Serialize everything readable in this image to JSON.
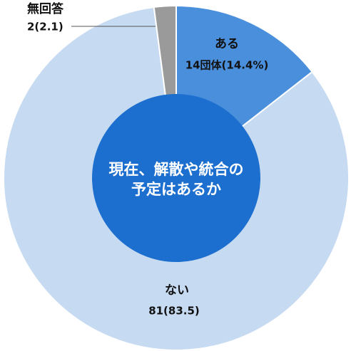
{
  "chart_data": {
    "type": "donut",
    "title": "現在、解散や統合の予定はあるか",
    "title_lines": [
      "現在、解散や統合の",
      "予定はあるか"
    ],
    "categories": [
      "ある",
      "ない",
      "無回答"
    ],
    "values": [
      14,
      81,
      2
    ],
    "value_labels": [
      "14団体(14.4%)",
      "81(83.5)",
      "2(2.1)"
    ],
    "colors": [
      "#4a8fdc",
      "#c6daf2",
      "#9a9a9a"
    ],
    "center_color": "#1c6fcf"
  }
}
